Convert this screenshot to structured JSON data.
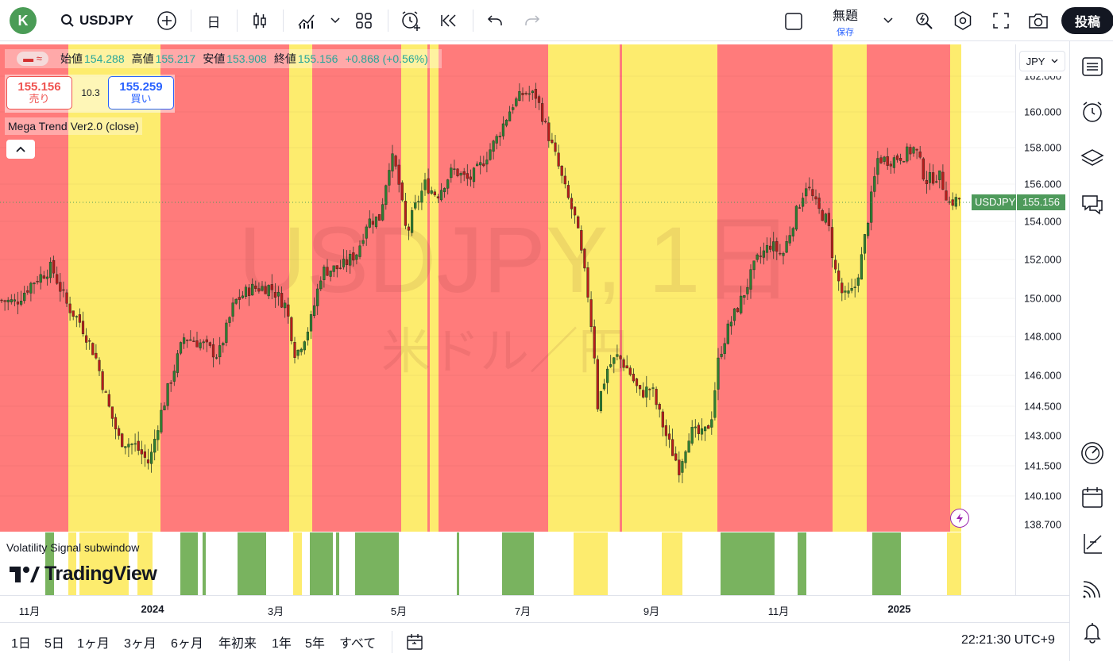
{
  "topbar": {
    "avatar_letter": "K",
    "symbol": "USDJPY",
    "interval": "日",
    "layout_title": "無題",
    "layout_save": "保存",
    "publish": "投稿"
  },
  "legend": {
    "ohlc": [
      {
        "label": "始値",
        "value": "154.288"
      },
      {
        "label": "高値",
        "value": "155.217"
      },
      {
        "label": "安値",
        "value": "153.908"
      },
      {
        "label": "終値",
        "value": "155.156"
      }
    ],
    "change": "+0.868 (+0.56%)",
    "sell_price": "155.156",
    "sell_label": "売り",
    "spread": "10.3",
    "buy_price": "155.259",
    "buy_label": "買い",
    "indicator": "Mega Trend Ver2.0 (close)",
    "subwindow": "Volatility Signal subwindow"
  },
  "watermark": {
    "title": "USDJPY, 1日",
    "subtitle": "米ドル／円"
  },
  "price_scale": {
    "currency": "JPY",
    "ticks": [
      "162.000",
      "160.000",
      "158.000",
      "156.000",
      "154.000",
      "152.000",
      "150.000",
      "148.000",
      "146.000",
      "144.500",
      "143.000",
      "141.500",
      "140.100",
      "138.700"
    ],
    "last_symbol": "USDJPY",
    "last_price": "155.156"
  },
  "time_axis": [
    "11月",
    "2024",
    "3月",
    "5月",
    "7月",
    "9月",
    "11月",
    "2025"
  ],
  "bottombar": {
    "ranges": [
      "1日",
      "5日",
      "1ヶ月",
      "3ヶ月",
      "6ヶ月",
      "年初来",
      "1年",
      "5年",
      "すべて"
    ],
    "clock": "22:21:30 UTC+9"
  },
  "brand": "TradingView",
  "colors": {
    "red_zone": "#ff7b7b",
    "yellow_zone": "#fdec6e",
    "green_signal": "#79b35f",
    "up": "#26a69a",
    "down": "#ef5350",
    "accent": "#2962ff"
  },
  "icons": [
    "search-icon",
    "plus-circle-icon",
    "candles-icon",
    "indicators-icon",
    "layout-grid-icon",
    "alert-icon",
    "replay-icon",
    "undo-icon",
    "redo-icon",
    "fullscreen-icon",
    "camera-icon",
    "watchlist-icon",
    "clock-alert-icon",
    "layers-icon",
    "chat-icon",
    "gauge-icon",
    "calendar-icon",
    "line-tool-icon",
    "broadcast-icon",
    "bell-icon"
  ]
}
